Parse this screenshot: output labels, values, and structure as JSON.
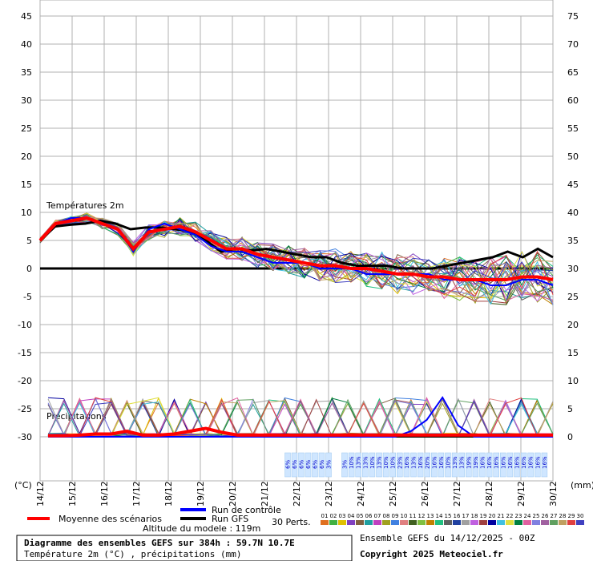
{
  "chart_data": {
    "type": "line",
    "left_axis": {
      "unit": "(°C)",
      "ylim": [
        -30,
        45
      ],
      "ticks": [
        45,
        40,
        35,
        30,
        25,
        20,
        15,
        10,
        5,
        0,
        -5,
        -10,
        -15,
        -20,
        -25,
        -30
      ]
    },
    "right_axis": {
      "unit": "(mm)",
      "ylim": [
        0,
        75
      ],
      "ticks": [
        75,
        70,
        65,
        60,
        55,
        50,
        45,
        40,
        35,
        30,
        25,
        20,
        15,
        10,
        5,
        0
      ]
    },
    "dates": [
      "14/12",
      "15/12",
      "16/12",
      "17/12",
      "18/12",
      "19/12",
      "20/12",
      "21/12",
      "22/12",
      "23/12",
      "24/12",
      "25/12",
      "26/12",
      "27/12",
      "28/12",
      "29/12",
      "30/12"
    ],
    "labels": {
      "temperature_section": "Températures 2m",
      "precip_section": "Précipitations"
    },
    "series": [
      {
        "name": "Moyenne des scénarios",
        "color": "#ff0000",
        "temperature": [
          5,
          8,
          8.5,
          9,
          8,
          7,
          3.5,
          6.5,
          7,
          7.5,
          6.5,
          5,
          3.5,
          3.5,
          2.5,
          2,
          1.5,
          1,
          0.5,
          0.5,
          0,
          0,
          -0.5,
          -1,
          -1,
          -1.5,
          -1.5,
          -2,
          -2,
          -2,
          -2,
          -1.5,
          -1.5,
          -2
        ],
        "precip": [
          0.2,
          0.2,
          0.3,
          0.5,
          0.5,
          1,
          0.3,
          0.3,
          0.5,
          1,
          1.5,
          0.8,
          0.3,
          0.3,
          0.3,
          0.3,
          0.3,
          0.3,
          0.3,
          0.3,
          0.3,
          0.3,
          0.3,
          0.3,
          0.3,
          0.3,
          0.3,
          0.3,
          0.3,
          0.3,
          0.3,
          0.3,
          0.3
        ]
      },
      {
        "name": "Run de contrôle",
        "color": "#0000ff",
        "temperature": [
          5,
          8,
          9,
          9,
          8,
          7,
          3,
          7,
          8,
          7,
          6,
          4,
          3,
          3,
          2,
          1,
          1,
          1,
          0,
          0,
          0,
          -1,
          -1,
          -1,
          -1,
          -1,
          -2,
          -2,
          -2,
          -3,
          -3,
          -2,
          -2,
          -3
        ],
        "precip": [
          0,
          0,
          0,
          0,
          0,
          0,
          0,
          0,
          0,
          0,
          0,
          0,
          0,
          0,
          0,
          0,
          0,
          0,
          0,
          0,
          0,
          0,
          0,
          1,
          3,
          7,
          2,
          0,
          0,
          0,
          0,
          0,
          0
        ]
      },
      {
        "name": "Run GFS",
        "color": "#000000",
        "temperature": [
          5,
          7.5,
          7.8,
          8,
          8.5,
          8,
          7,
          7.3,
          7.3,
          7,
          6.5,
          5,
          3,
          3.5,
          3.2,
          3.5,
          3,
          2.5,
          2,
          2,
          1,
          0.5,
          0.5,
          0.5,
          0,
          0,
          0,
          0.5,
          1,
          1.5,
          2,
          3,
          2,
          3.5,
          2
        ],
        "precip": [
          0,
          0,
          0,
          0,
          0,
          0,
          0,
          0,
          0,
          0,
          0,
          0,
          0,
          0,
          0,
          0,
          0,
          0,
          0,
          0,
          0,
          0,
          0,
          0,
          0,
          0,
          0,
          0,
          0,
          0,
          0,
          0,
          0
        ]
      }
    ],
    "legend": {
      "members_label": "30 Perts.",
      "members": [
        "01",
        "02",
        "03",
        "04",
        "05",
        "06",
        "07",
        "08",
        "09",
        "10",
        "11",
        "12",
        "13",
        "14",
        "15",
        "16",
        "17",
        "18",
        "19",
        "20",
        "21",
        "22",
        "23",
        "24",
        "25",
        "26",
        "27",
        "28",
        "29",
        "30"
      ]
    },
    "snow_probability": {
      "group1": [
        "6%",
        "6%",
        "6%",
        "6%",
        "6%",
        "6%",
        "3%"
      ],
      "group2": [
        "3%",
        "10%",
        "13%",
        "13%",
        "10%",
        "13%",
        "10%",
        "10%",
        "23%",
        "16%",
        "13%",
        "16%",
        "20%",
        "16%",
        "16%",
        "10%",
        "13%",
        "13%",
        "19%",
        "19%",
        "16%",
        "16%",
        "16%",
        "16%",
        "16%",
        "16%",
        "16%",
        "16%",
        "16%",
        "16%"
      ]
    },
    "footer": {
      "title": "Diagramme des ensembles GEFS sur 384h : 59.7N 10.7E",
      "subtitle": "Température 2m (°C) , précipitations (mm)",
      "altitude": "Altitude du modele : 119m",
      "ensemble": "Ensemble GEFS du 14/12/2025 - 00Z",
      "copyright": "Copyright 2025 Meteociel.fr"
    },
    "member_colors": [
      "#e07020",
      "#40b040",
      "#e0c000",
      "#8040c0",
      "#806040",
      "#20a0a0",
      "#c040c0",
      "#a0a020",
      "#4080e0",
      "#e08080",
      "#406020",
      "#80c040",
      "#c08000",
      "#20c080",
      "#606060",
      "#2040a0",
      "#a0a0a0",
      "#c060e0",
      "#a04040",
      "#0000a0",
      "#40c0e0",
      "#e0e040",
      "#008040",
      "#e060a0",
      "#8080e0",
      "#a060a0",
      "#60a060",
      "#c0a060",
      "#e04040",
      "#4040c0"
    ]
  }
}
